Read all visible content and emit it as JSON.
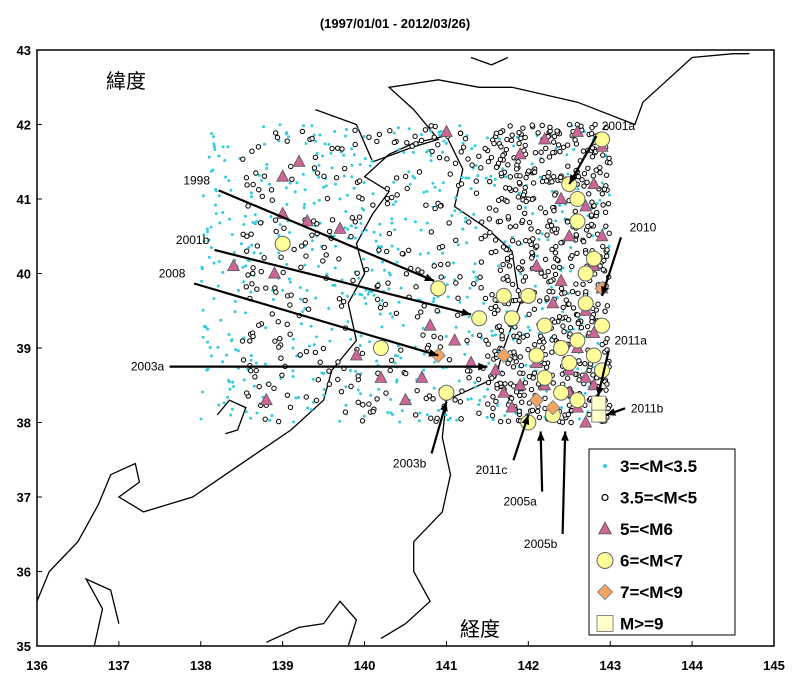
{
  "chart_data": {
    "type": "scatter",
    "title": "(1997/01/01 - 2012/03/26)",
    "xlabel": "経度",
    "ylabel": "緯度",
    "xlim": [
      136,
      145
    ],
    "ylim": [
      35,
      43
    ],
    "x_ticks": [
      "136",
      "137",
      "138",
      "139",
      "140",
      "141",
      "142",
      "143",
      "144",
      "145"
    ],
    "y_ticks": [
      "35",
      "36",
      "37",
      "38",
      "39",
      "40",
      "41",
      "42",
      "43"
    ],
    "legend_position": "bottom-right",
    "colors": {
      "m3": "#33ccdd",
      "m35": "#000000",
      "m5": "#cc6699",
      "m6": "#ffff99",
      "m7": "#f4a460",
      "m9": "#ffffcc"
    },
    "series": [
      {
        "key": "m3",
        "name": "3=<M<3.5",
        "marker": "dot"
      },
      {
        "key": "m35",
        "name": "3.5=<M<5",
        "marker": "open-circle"
      },
      {
        "key": "m5",
        "name": "5=<M6",
        "marker": "triangle"
      },
      {
        "key": "m6",
        "name": "6=<M<7",
        "marker": "circle"
      },
      {
        "key": "m7",
        "name": "7=<M<9",
        "marker": "diamond"
      },
      {
        "key": "m9",
        "name": "M>=9",
        "marker": "square"
      }
    ],
    "points_m5": [
      [
        138.4,
        40.1
      ],
      [
        138.8,
        38.3
      ],
      [
        138.9,
        40.0
      ],
      [
        139.0,
        41.3
      ],
      [
        139.2,
        41.5
      ],
      [
        139.0,
        40.8
      ],
      [
        139.3,
        40.7
      ],
      [
        139.7,
        40.6
      ],
      [
        139.9,
        38.9
      ],
      [
        140.2,
        38.6
      ],
      [
        140.5,
        38.3
      ],
      [
        140.7,
        38.6
      ],
      [
        140.8,
        39.3
      ],
      [
        141.0,
        41.9
      ],
      [
        141.1,
        39.1
      ],
      [
        141.3,
        38.8
      ],
      [
        141.6,
        38.7
      ],
      [
        141.7,
        38.4
      ],
      [
        141.8,
        38.2
      ],
      [
        141.9,
        38.5
      ],
      [
        141.9,
        41.6
      ],
      [
        142.0,
        38.0
      ],
      [
        142.1,
        40.1
      ],
      [
        142.1,
        38.8
      ],
      [
        142.2,
        38.5
      ],
      [
        142.2,
        41.8
      ],
      [
        142.3,
        39.6
      ],
      [
        142.3,
        38.2
      ],
      [
        142.4,
        41.0
      ],
      [
        142.4,
        39.9
      ],
      [
        142.5,
        38.4
      ],
      [
        142.5,
        38.7
      ],
      [
        142.5,
        40.5
      ],
      [
        142.6,
        41.9
      ],
      [
        142.6,
        39.0
      ],
      [
        142.6,
        38.2
      ],
      [
        142.7,
        40.9
      ],
      [
        142.7,
        39.5
      ],
      [
        142.7,
        38.6
      ],
      [
        142.7,
        38.0
      ],
      [
        142.8,
        41.2
      ],
      [
        142.8,
        40.1
      ],
      [
        142.8,
        39.2
      ],
      [
        142.8,
        38.5
      ],
      [
        142.9,
        38.1
      ],
      [
        142.9,
        39.8
      ],
      [
        142.9,
        41.7
      ],
      [
        142.9,
        40.5
      ]
    ],
    "points_m6": [
      [
        139.0,
        40.4
      ],
      [
        140.2,
        39.0
      ],
      [
        140.9,
        39.8
      ],
      [
        141.0,
        38.4
      ],
      [
        141.4,
        39.4
      ],
      [
        141.7,
        39.7
      ],
      [
        142.0,
        39.7
      ],
      [
        142.0,
        38.0
      ],
      [
        142.1,
        38.9
      ],
      [
        142.2,
        39.3
      ],
      [
        142.3,
        38.1
      ],
      [
        142.4,
        38.4
      ],
      [
        142.4,
        39.0
      ],
      [
        142.5,
        41.2
      ],
      [
        142.5,
        38.8
      ],
      [
        142.6,
        40.7
      ],
      [
        142.6,
        41.0
      ],
      [
        142.6,
        39.1
      ],
      [
        142.7,
        39.6
      ],
      [
        142.7,
        40.0
      ],
      [
        142.8,
        38.9
      ],
      [
        142.8,
        40.2
      ],
      [
        142.9,
        39.3
      ],
      [
        142.9,
        41.8
      ],
      [
        142.9,
        38.7
      ],
      [
        142.6,
        38.3
      ],
      [
        142.2,
        38.6
      ],
      [
        141.8,
        39.4
      ]
    ],
    "points_m7": [
      [
        140.9,
        38.9
      ],
      [
        141.7,
        38.9
      ],
      [
        142.3,
        38.2
      ],
      [
        142.9,
        39.8
      ],
      [
        142.1,
        38.3
      ]
    ],
    "points_m9": [
      [
        142.86,
        38.1
      ],
      [
        142.86,
        38.26
      ]
    ],
    "annotations": [
      {
        "label": "2001a",
        "text_xy": [
          143.1,
          41.98
        ],
        "tip": [
          142.5,
          41.2
        ]
      },
      {
        "label": "1998",
        "text_xy": [
          137.95,
          41.25
        ],
        "tip": [
          140.85,
          39.9
        ]
      },
      {
        "label": "2010",
        "text_xy": [
          143.4,
          40.62
        ],
        "tip": [
          142.9,
          39.7
        ]
      },
      {
        "label": "2001b",
        "text_xy": [
          137.9,
          40.45
        ],
        "tip": [
          141.3,
          39.45
        ]
      },
      {
        "label": "2008",
        "text_xy": [
          137.65,
          40.0
        ],
        "tip": [
          140.9,
          38.9
        ]
      },
      {
        "label": "2003a",
        "text_xy": [
          137.35,
          38.75
        ],
        "tip": [
          141.5,
          38.75
        ]
      },
      {
        "label": "2011a",
        "text_xy": [
          143.25,
          39.1
        ],
        "tip": [
          142.85,
          38.35
        ]
      },
      {
        "label": "2011b",
        "text_xy": [
          143.45,
          38.19
        ],
        "tip": [
          142.95,
          38.1
        ]
      },
      {
        "label": "2003b",
        "text_xy": [
          140.55,
          37.45
        ],
        "tip": [
          141.0,
          38.28
        ]
      },
      {
        "label": "2011c",
        "text_xy": [
          141.55,
          37.36
        ],
        "tip": [
          142.0,
          38.1
        ]
      },
      {
        "label": "2005a",
        "text_xy": [
          141.9,
          36.94
        ],
        "tip": [
          142.15,
          37.88
        ]
      },
      {
        "label": "2005b",
        "text_xy": [
          142.15,
          36.37
        ],
        "tip": [
          142.45,
          37.88
        ]
      }
    ]
  }
}
